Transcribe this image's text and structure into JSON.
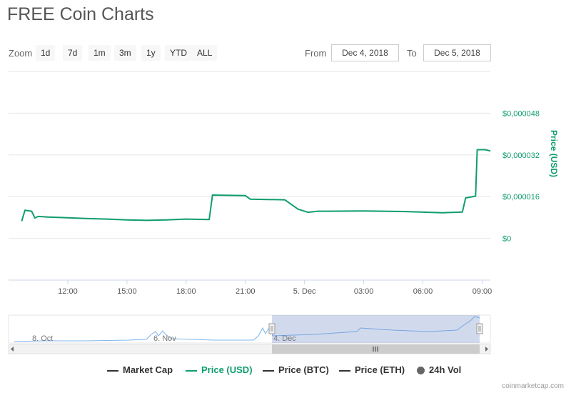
{
  "title": "FREE Coin Charts",
  "toolbar": {
    "zoom_label": "Zoom",
    "zoom_buttons": [
      "1d",
      "7d",
      "1m",
      "3m",
      "1y",
      "YTD",
      "ALL"
    ],
    "active_zoom": "1d",
    "from_label": "From",
    "from_value": "Dec 4, 2018",
    "to_label": "To",
    "to_value": "Dec 5, 2018"
  },
  "chart_data": {
    "type": "line",
    "title": "",
    "xlabel": "",
    "ylabel": "Price (USD)",
    "x_ticks": [
      "12:00",
      "15:00",
      "18:00",
      "21:00",
      "5. Dec",
      "03:00",
      "06:00",
      "09:00"
    ],
    "y_ticks": [
      "$0",
      "$0,000016",
      "$0,000032",
      "$0,000048"
    ],
    "ylim": [
      -1.6e-05,
      6.4e-05
    ],
    "grid": true,
    "series": [
      {
        "name": "Price (USD)",
        "color": "#0f9d6e",
        "x": [
          "2018-12-04 09:40",
          "2018-12-04 09:50",
          "2018-12-04 10:10",
          "2018-12-04 10:20",
          "2018-12-04 10:30",
          "2018-12-04 11:00",
          "2018-12-04 12:00",
          "2018-12-04 13:00",
          "2018-12-04 14:00",
          "2018-12-04 15:00",
          "2018-12-04 16:00",
          "2018-12-04 17:00",
          "2018-12-04 18:00",
          "2018-12-04 19:10",
          "2018-12-04 19:20",
          "2018-12-04 21:00",
          "2018-12-04 21:15",
          "2018-12-04 23:00",
          "2018-12-04 23:40",
          "2018-12-05 00:10",
          "2018-12-05 00:40",
          "2018-12-05 01:00",
          "2018-12-05 03:00",
          "2018-12-05 05:00",
          "2018-12-05 07:00",
          "2018-12-05 08:00",
          "2018-12-05 08:10",
          "2018-12-05 08:40",
          "2018-12-05 08:45",
          "2018-12-05 09:10",
          "2018-12-05 09:25"
        ],
        "values": [
          6.6e-06,
          1.08e-05,
          1.04e-05,
          7.8e-06,
          8.4e-06,
          8.2e-06,
          7.9e-06,
          7.6e-06,
          7.4e-06,
          7.1e-06,
          6.9e-06,
          7.1e-06,
          7.4e-06,
          7.2e-06,
          1.66e-05,
          1.64e-05,
          1.5e-05,
          1.48e-05,
          1.12e-05,
          1e-05,
          1.04e-05,
          1.04e-05,
          1.05e-05,
          1.03e-05,
          9.8e-06,
          1.01e-05,
          1.55e-05,
          1.62e-05,
          3.4e-05,
          3.4e-05,
          3.35e-05
        ]
      }
    ]
  },
  "navigator": {
    "labels": [
      "8. Oct",
      "6. Nov",
      "4. Dec"
    ]
  },
  "legend": {
    "items": [
      {
        "label": "Market Cap",
        "color": "#444444",
        "symbol": "line"
      },
      {
        "label": "Price (USD)",
        "color": "#0f9d6e",
        "symbol": "line"
      },
      {
        "label": "Price (BTC)",
        "color": "#444444",
        "symbol": "line"
      },
      {
        "label": "Price (ETH)",
        "color": "#444444",
        "symbol": "line"
      },
      {
        "label": "24h Vol",
        "color": "#666666",
        "symbol": "dot"
      }
    ]
  },
  "credits": "coinmarketcap.com"
}
